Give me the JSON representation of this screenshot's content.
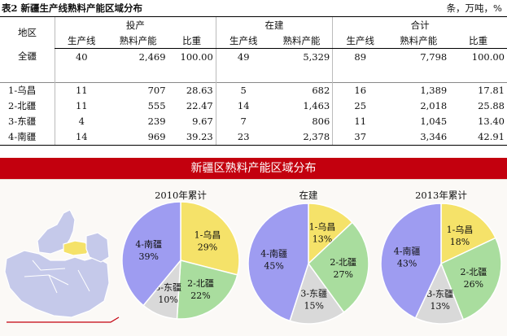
{
  "caption": {
    "title": "表2  新疆生产线熟料产能区域分布",
    "unit": "条，万吨，%"
  },
  "table": {
    "header": {
      "region": "地区",
      "g1": "投产",
      "g2": "在建",
      "g3": "合计",
      "lines": "生产线",
      "capacity": "熟料产能",
      "share": "比重"
    },
    "rows": [
      {
        "label": "全疆",
        "c": [
          "40",
          "2,469",
          "100.00",
          "49",
          "5,329",
          "89",
          "7,798",
          "100.00"
        ]
      },
      {
        "label": "1-乌昌",
        "c": [
          "11",
          "707",
          "28.63",
          "5",
          "682",
          "16",
          "1,389",
          "17.81"
        ]
      },
      {
        "label": "2-北疆",
        "c": [
          "11",
          "555",
          "22.47",
          "14",
          "1,463",
          "25",
          "2,018",
          "25.88"
        ]
      },
      {
        "label": "3-东疆",
        "c": [
          "4",
          "239",
          "9.67",
          "7",
          "806",
          "11",
          "1,045",
          "13.40"
        ]
      },
      {
        "label": "4-南疆",
        "c": [
          "14",
          "969",
          "39.23",
          "23",
          "2,378",
          "37",
          "3,346",
          "42.91"
        ]
      }
    ]
  },
  "banner": "新疆区熟料产能区域分布",
  "colors": {
    "urumqi": "#f5e269",
    "north": "#a9dd9e",
    "east": "#d9d9d9",
    "south": "#9e9cf1",
    "banner": "#c3000e",
    "map": "#c5c9ea"
  },
  "chart_data": [
    {
      "type": "pie",
      "title": "2010年累计",
      "slices": [
        {
          "label": "1-乌昌",
          "value": 29,
          "text": "29%"
        },
        {
          "label": "2-北疆",
          "value": 22,
          "text": "22%"
        },
        {
          "label": "3-东疆",
          "value": 10,
          "text": "10%"
        },
        {
          "label": "4-南疆",
          "value": 39,
          "text": "39%"
        }
      ]
    },
    {
      "type": "pie",
      "title": "在建",
      "slices": [
        {
          "label": "1-乌昌",
          "value": 13,
          "text": "13%"
        },
        {
          "label": "2-北疆",
          "value": 27,
          "text": "27%"
        },
        {
          "label": "3-东疆",
          "value": 15,
          "text": "15%"
        },
        {
          "label": "4-南疆",
          "value": 45,
          "text": "45%"
        }
      ]
    },
    {
      "type": "pie",
      "title": "2013年累计",
      "slices": [
        {
          "label": "1-乌昌",
          "value": 18,
          "text": "18%"
        },
        {
          "label": "2-北疆",
          "value": 26,
          "text": "26%"
        },
        {
          "label": "3-东疆",
          "value": 13,
          "text": "13%"
        },
        {
          "label": "4-南疆",
          "value": 43,
          "text": "43%"
        }
      ]
    }
  ]
}
